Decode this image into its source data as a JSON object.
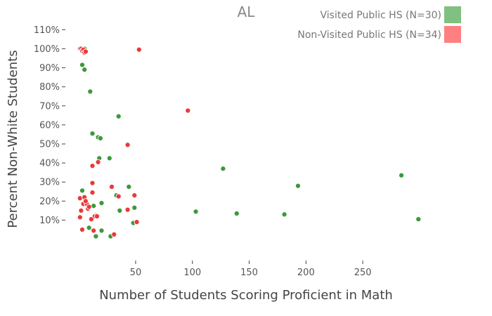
{
  "chart_data": {
    "type": "scatter",
    "title": "AL",
    "xlabel": "Number of Students Scoring Proficient in Math",
    "ylabel": "Percent Non-White Students",
    "xlim": [
      -10,
      305
    ],
    "ylim": [
      -0.09,
      1.16
    ],
    "x_ticks": [
      50,
      100,
      150,
      200,
      250
    ],
    "x_tick_labels": [
      "50",
      "100",
      "150",
      "200",
      "250"
    ],
    "y_ticks": [
      0.1,
      0.2,
      0.3,
      0.4,
      0.5,
      0.6,
      0.7,
      0.8,
      0.9,
      1.0,
      1.1
    ],
    "y_tick_labels": [
      "10%",
      "20%",
      "30%",
      "40%",
      "50%",
      "60%",
      "70%",
      "80%",
      "90%",
      "100%",
      "110%"
    ],
    "grid": false,
    "legend_position": "top-right",
    "series": [
      {
        "name": "Visited Public HS (N=30)",
        "color": "#3a9a3a",
        "legend_color": "#80c080",
        "points": [
          [
            4,
            1.0
          ],
          [
            5,
            1.0
          ],
          [
            3,
            0.915
          ],
          [
            5,
            0.89
          ],
          [
            10,
            0.775
          ],
          [
            35,
            0.645
          ],
          [
            12,
            0.555
          ],
          [
            17,
            0.535
          ],
          [
            19,
            0.53
          ],
          [
            18,
            0.425
          ],
          [
            27,
            0.425
          ],
          [
            127,
            0.37
          ],
          [
            3,
            0.255
          ],
          [
            193,
            0.28
          ],
          [
            44,
            0.275
          ],
          [
            284,
            0.335
          ],
          [
            33,
            0.23
          ],
          [
            20,
            0.19
          ],
          [
            13,
            0.175
          ],
          [
            49,
            0.165
          ],
          [
            36,
            0.15
          ],
          [
            103,
            0.145
          ],
          [
            139,
            0.135
          ],
          [
            181,
            0.13
          ],
          [
            299,
            0.105
          ],
          [
            48,
            0.085
          ],
          [
            9,
            0.06
          ],
          [
            20,
            0.045
          ],
          [
            15,
            0.015
          ],
          [
            28,
            0.015
          ]
        ]
      },
      {
        "name": "Non-Visited Public HS (N=34)",
        "color": "#e83a3a",
        "legend_color": "#ff8080",
        "points": [
          [
            1,
            1.0
          ],
          [
            2,
            1.0
          ],
          [
            3,
            0.99
          ],
          [
            4,
            0.995
          ],
          [
            5,
            0.98
          ],
          [
            6,
            0.985
          ],
          [
            53,
            0.995
          ],
          [
            96,
            0.675
          ],
          [
            43,
            0.495
          ],
          [
            17,
            0.405
          ],
          [
            12,
            0.385
          ],
          [
            12,
            0.295
          ],
          [
            29,
            0.275
          ],
          [
            12,
            0.245
          ],
          [
            35,
            0.225
          ],
          [
            49,
            0.23
          ],
          [
            1,
            0.215
          ],
          [
            5,
            0.22
          ],
          [
            4,
            0.185
          ],
          [
            7,
            0.185
          ],
          [
            8,
            0.16
          ],
          [
            2,
            0.15
          ],
          [
            43,
            0.155
          ],
          [
            15,
            0.125
          ],
          [
            14,
            0.12
          ],
          [
            1,
            0.115
          ],
          [
            11,
            0.105
          ],
          [
            51,
            0.09
          ],
          [
            3,
            0.05
          ],
          [
            13,
            0.045
          ],
          [
            31,
            0.025
          ],
          [
            6,
            0.2
          ],
          [
            9,
            0.17
          ],
          [
            16,
            0.12
          ]
        ]
      }
    ]
  }
}
